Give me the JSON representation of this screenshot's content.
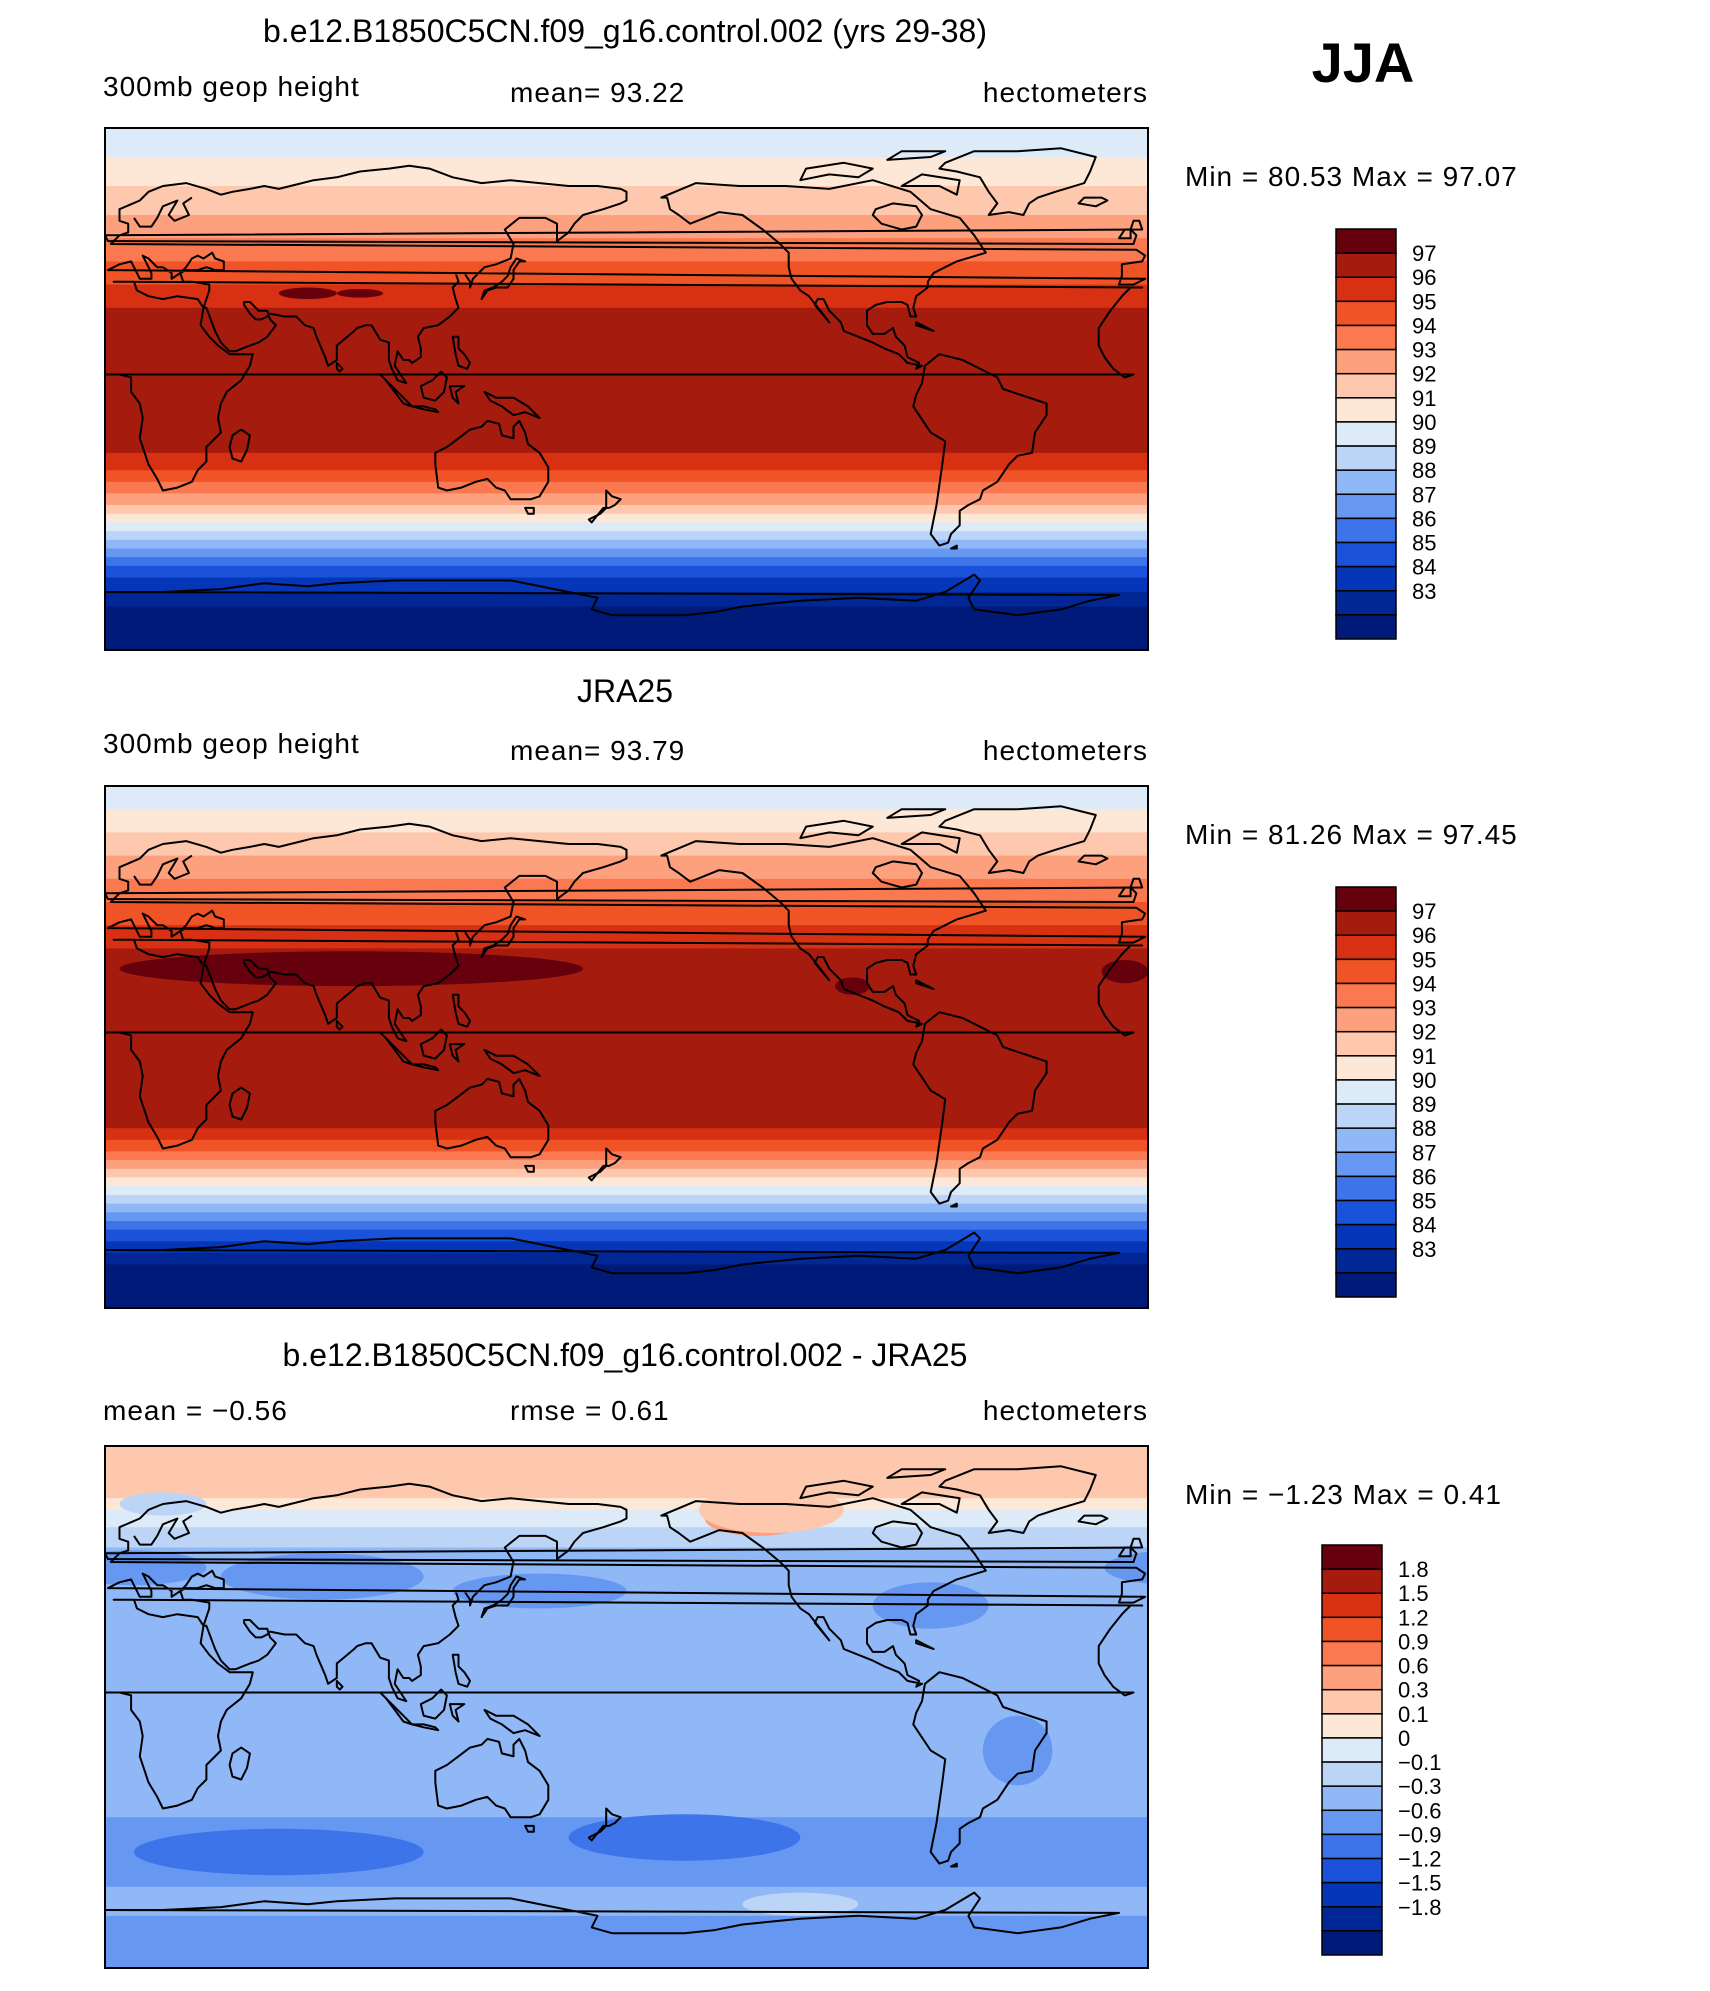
{
  "season": "JJA",
  "panels": [
    {
      "title": "b.e12.B1850C5CN.f09_g16.control.002 (yrs 29-38)",
      "left_label": "300mb  geop  height",
      "center_label": "mean=   93.22",
      "right_label": "hectometers",
      "minmax": "Min  =    80.53  Max  =    97.07",
      "colorbar": {
        "colors": [
          "#67000d",
          "#a51b0e",
          "#d73012",
          "#f05326",
          "#fb7950",
          "#fca07e",
          "#fdc8ad",
          "#fde8d8",
          "#ddebf9",
          "#bcd5f7",
          "#90b8f6",
          "#6698f2",
          "#3d74ea",
          "#1a52d9",
          "#0536b8",
          "#002795",
          "#001a7a"
        ],
        "labels": [
          "97",
          "96",
          "95",
          "94",
          "93",
          "92",
          "91",
          "90",
          "89",
          "88",
          "87",
          "86",
          "85",
          "84",
          "83"
        ]
      },
      "field": {
        "type": "absolute",
        "stops": [
          {
            "lat": 90,
            "color": "#ddebf9"
          },
          {
            "lat": 80,
            "color": "#fde8d8"
          },
          {
            "lat": 70,
            "color": "#fdc8ad"
          },
          {
            "lat": 60,
            "color": "#fca07e"
          },
          {
            "lat": 52,
            "color": "#fb7950"
          },
          {
            "lat": 44,
            "color": "#f05326"
          },
          {
            "lat": 36,
            "color": "#d73012"
          },
          {
            "lat": 28,
            "color": "#a51b0e"
          },
          {
            "lat": -15,
            "color": "#a51b0e"
          },
          {
            "lat": -22,
            "color": "#d73012"
          },
          {
            "lat": -28,
            "color": "#f05326"
          },
          {
            "lat": -32,
            "color": "#fb7950"
          },
          {
            "lat": -36,
            "color": "#fca07e"
          },
          {
            "lat": -40,
            "color": "#fdc8ad"
          },
          {
            "lat": -43,
            "color": "#fde8d8"
          },
          {
            "lat": -46,
            "color": "#ddebf9"
          },
          {
            "lat": -49,
            "color": "#bcd5f7"
          },
          {
            "lat": -52,
            "color": "#90b8f6"
          },
          {
            "lat": -55,
            "color": "#6698f2"
          },
          {
            "lat": -58,
            "color": "#3d74ea"
          },
          {
            "lat": -61,
            "color": "#1a52d9"
          },
          {
            "lat": -65,
            "color": "#0536b8"
          },
          {
            "lat": -70,
            "color": "#002795"
          },
          {
            "lat": -75,
            "color": "#001a7a"
          },
          {
            "lat": -90,
            "color": "#001a7a"
          }
        ],
        "blobs": [
          {
            "lon": 70,
            "lat": 33,
            "rx": 10,
            "ry": 2,
            "color": "#67000d"
          },
          {
            "lon": 88,
            "lat": 33,
            "rx": 8,
            "ry": 1.5,
            "color": "#67000d"
          }
        ]
      }
    },
    {
      "title": "JRA25",
      "left_label": "300mb  geop  height",
      "center_label": "mean=   93.79",
      "right_label": "hectometers",
      "minmax": "Min  =    81.26  Max  =    97.45",
      "colorbar": {
        "colors": [
          "#67000d",
          "#a51b0e",
          "#d73012",
          "#f05326",
          "#fb7950",
          "#fca07e",
          "#fdc8ad",
          "#fde8d8",
          "#ddebf9",
          "#bcd5f7",
          "#90b8f6",
          "#6698f2",
          "#3d74ea",
          "#1a52d9",
          "#0536b8",
          "#002795",
          "#001a7a"
        ],
        "labels": [
          "97",
          "96",
          "95",
          "94",
          "93",
          "92",
          "91",
          "90",
          "89",
          "88",
          "87",
          "86",
          "85",
          "84",
          "83"
        ]
      },
      "field": {
        "type": "absolute",
        "stops": [
          {
            "lat": 90,
            "color": "#ddebf9"
          },
          {
            "lat": 82,
            "color": "#fde8d8"
          },
          {
            "lat": 74,
            "color": "#fdc8ad"
          },
          {
            "lat": 66,
            "color": "#fca07e"
          },
          {
            "lat": 58,
            "color": "#fb7950"
          },
          {
            "lat": 50,
            "color": "#f05326"
          },
          {
            "lat": 42,
            "color": "#d73012"
          },
          {
            "lat": 34,
            "color": "#a51b0e"
          },
          {
            "lat": -22,
            "color": "#a51b0e"
          },
          {
            "lat": -28,
            "color": "#d73012"
          },
          {
            "lat": -32,
            "color": "#f05326"
          },
          {
            "lat": -36,
            "color": "#fb7950"
          },
          {
            "lat": -39,
            "color": "#fca07e"
          },
          {
            "lat": -42,
            "color": "#fdc8ad"
          },
          {
            "lat": -45,
            "color": "#fde8d8"
          },
          {
            "lat": -48,
            "color": "#ddebf9"
          },
          {
            "lat": -51,
            "color": "#bcd5f7"
          },
          {
            "lat": -54,
            "color": "#90b8f6"
          },
          {
            "lat": -57,
            "color": "#6698f2"
          },
          {
            "lat": -60,
            "color": "#3d74ea"
          },
          {
            "lat": -63,
            "color": "#1a52d9"
          },
          {
            "lat": -67,
            "color": "#0536b8"
          },
          {
            "lat": -71,
            "color": "#002795"
          },
          {
            "lat": -75,
            "color": "#001a7a"
          },
          {
            "lat": -90,
            "color": "#001a7a"
          }
        ],
        "blobs": [
          {
            "lon": 85,
            "lat": 27,
            "rx": 80,
            "ry": 6,
            "color": "#67000d"
          },
          {
            "lon": -8,
            "lat": 26,
            "rx": 8,
            "ry": 4,
            "color": "#67000d"
          },
          {
            "lon": -102,
            "lat": 21,
            "rx": 6,
            "ry": 3,
            "color": "#67000d"
          }
        ]
      }
    },
    {
      "title": "b.e12.B1850C5CN.f09_g16.control.002 - JRA25",
      "left_label": "mean  =    −0.56",
      "center_label": "rmse  =    0.61",
      "right_label": "hectometers",
      "minmax": "Min  =    −1.23  Max  =     0.41",
      "colorbar": {
        "colors": [
          "#67000d",
          "#a51b0e",
          "#d73012",
          "#f05326",
          "#fb7950",
          "#fca07e",
          "#fdc8ad",
          "#fde8d8",
          "#ddebf9",
          "#bcd5f7",
          "#90b8f6",
          "#6698f2",
          "#3d74ea",
          "#1a52d9",
          "#0536b8",
          "#002795",
          "#001a7a"
        ],
        "labels": [
          "1.8",
          "1.5",
          "1.2",
          "0.9",
          "0.6",
          "0.3",
          "0.1",
          "0",
          "−0.1",
          "−0.3",
          "−0.6",
          "−0.9",
          "−1.2",
          "−1.5",
          "−1.8"
        ]
      },
      "field": {
        "type": "difference",
        "stops": [
          {
            "lat": 90,
            "color": "#fdc8ad"
          },
          {
            "lat": 77,
            "color": "#fdc8ad"
          },
          {
            "lat": 72,
            "color": "#fde8d8"
          },
          {
            "lat": 68,
            "color": "#ddebf9"
          },
          {
            "lat": 62,
            "color": "#bcd5f7"
          },
          {
            "lat": 55,
            "color": "#90b8f6"
          },
          {
            "lat": -30,
            "color": "#90b8f6"
          },
          {
            "lat": -38,
            "color": "#6698f2"
          },
          {
            "lat": -55,
            "color": "#6698f2"
          },
          {
            "lat": -62,
            "color": "#90b8f6"
          },
          {
            "lat": -72,
            "color": "#6698f2"
          },
          {
            "lat": -90,
            "color": "#6698f2"
          }
        ],
        "blobs": [
          {
            "lon": 75,
            "lat": 45,
            "rx": 35,
            "ry": 8,
            "color": "#6698f2"
          },
          {
            "lon": 10,
            "lat": 48,
            "rx": 25,
            "ry": 6,
            "color": "#6698f2"
          },
          {
            "lon": 150,
            "lat": 40,
            "rx": 30,
            "ry": 6,
            "color": "#6698f2"
          },
          {
            "lon": -75,
            "lat": 35,
            "rx": 20,
            "ry": 8,
            "color": "#6698f2"
          },
          {
            "lon": -45,
            "lat": -15,
            "rx": 12,
            "ry": 12,
            "color": "#6698f2"
          },
          {
            "lon": -160,
            "lat": -45,
            "rx": 40,
            "ry": 8,
            "color": "#3d74ea"
          },
          {
            "lon": 60,
            "lat": -50,
            "rx": 50,
            "ry": 8,
            "color": "#3d74ea"
          },
          {
            "lon": -135,
            "lat": 65,
            "rx": 18,
            "ry": 6,
            "color": "#fca07e"
          },
          {
            "lon": -130,
            "lat": 68,
            "rx": 25,
            "ry": 8,
            "color": "#fdc8ad"
          },
          {
            "lon": -120,
            "lat": -68,
            "rx": 20,
            "ry": 4,
            "color": "#bcd5f7"
          },
          {
            "lon": 20,
            "lat": 70,
            "rx": 15,
            "ry": 4,
            "color": "#bcd5f7"
          }
        ]
      }
    }
  ]
}
